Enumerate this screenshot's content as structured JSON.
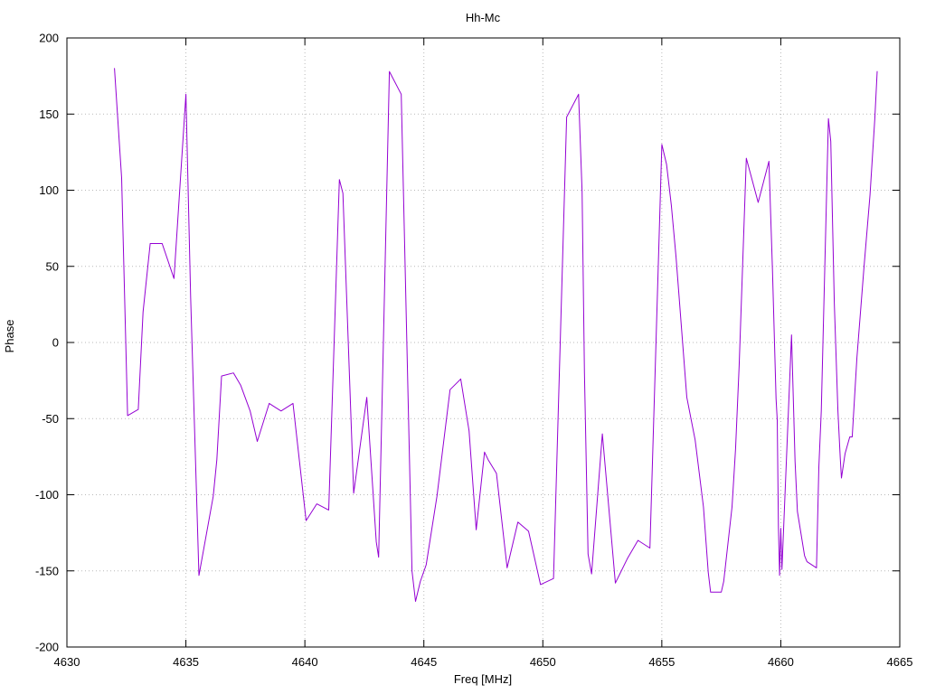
{
  "chart_data": {
    "type": "line",
    "title": "Hh-Mc",
    "xlabel": "Freq [MHz]",
    "ylabel": "Phase",
    "xlim": [
      4630,
      4665
    ],
    "ylim": [
      -200,
      200
    ],
    "xticks": [
      4630,
      4635,
      4640,
      4645,
      4650,
      4655,
      4660,
      4665
    ],
    "yticks": [
      -200,
      -150,
      -100,
      -50,
      0,
      50,
      100,
      150,
      200
    ],
    "grid": true,
    "legend_position": "none",
    "line_color": "#9400d3",
    "grid_color": "#b9b9b9",
    "border_color": "#000000",
    "background_color": "#ffffff",
    "series": [
      {
        "name": "Hh-Mc",
        "color": "#9400d3",
        "points": [
          [
            4632.0,
            180
          ],
          [
            4632.3,
            108
          ],
          [
            4632.55,
            -48
          ],
          [
            4633.0,
            -44
          ],
          [
            4633.2,
            20
          ],
          [
            4633.5,
            65
          ],
          [
            4634.0,
            65
          ],
          [
            4634.5,
            42
          ],
          [
            4635.0,
            163
          ],
          [
            4635.2,
            30
          ],
          [
            4635.55,
            -153
          ],
          [
            4636.15,
            -101
          ],
          [
            4636.3,
            -77
          ],
          [
            4636.5,
            -22
          ],
          [
            4637.0,
            -20
          ],
          [
            4637.3,
            -28
          ],
          [
            4637.7,
            -45
          ],
          [
            4638.0,
            -65
          ],
          [
            4638.5,
            -40
          ],
          [
            4638.7,
            -42
          ],
          [
            4639.0,
            -45
          ],
          [
            4639.5,
            -40
          ],
          [
            4640.05,
            -117
          ],
          [
            4640.5,
            -106
          ],
          [
            4641.0,
            -110
          ],
          [
            4641.45,
            107
          ],
          [
            4641.6,
            98
          ],
          [
            4642.05,
            -99
          ],
          [
            4642.6,
            -36
          ],
          [
            4643.0,
            -131
          ],
          [
            4643.1,
            -141
          ],
          [
            4643.55,
            178
          ],
          [
            4644.05,
            163
          ],
          [
            4644.5,
            -150
          ],
          [
            4644.65,
            -170
          ],
          [
            4644.85,
            -157
          ],
          [
            4645.1,
            -146
          ],
          [
            4645.55,
            -101
          ],
          [
            4646.1,
            -31
          ],
          [
            4646.55,
            -24
          ],
          [
            4646.9,
            -58
          ],
          [
            4647.2,
            -123
          ],
          [
            4647.55,
            -72
          ],
          [
            4647.7,
            -77
          ],
          [
            4648.05,
            -86
          ],
          [
            4648.5,
            -148
          ],
          [
            4648.95,
            -118
          ],
          [
            4649.4,
            -124
          ],
          [
            4649.9,
            -159
          ],
          [
            4650.45,
            -155
          ],
          [
            4651.0,
            148
          ],
          [
            4651.5,
            163
          ],
          [
            4651.65,
            99
          ],
          [
            4651.75,
            -20
          ],
          [
            4651.9,
            -139
          ],
          [
            4652.05,
            -152
          ],
          [
            4652.5,
            -60
          ],
          [
            4653.05,
            -158
          ],
          [
            4653.55,
            -142
          ],
          [
            4654.0,
            -130
          ],
          [
            4654.5,
            -135
          ],
          [
            4655.0,
            130
          ],
          [
            4655.2,
            117
          ],
          [
            4655.4,
            90
          ],
          [
            4655.6,
            56
          ],
          [
            4656.05,
            -36
          ],
          [
            4656.4,
            -64
          ],
          [
            4656.75,
            -108
          ],
          [
            4656.95,
            -151
          ],
          [
            4657.05,
            -164
          ],
          [
            4657.5,
            -164
          ],
          [
            4657.6,
            -157
          ],
          [
            4657.95,
            -108
          ],
          [
            4658.1,
            -70
          ],
          [
            4658.25,
            -15
          ],
          [
            4658.55,
            121
          ],
          [
            4659.05,
            92
          ],
          [
            4659.5,
            119
          ],
          [
            4659.65,
            48
          ],
          [
            4659.8,
            -37
          ],
          [
            4659.85,
            -51
          ],
          [
            4659.9,
            -121
          ],
          [
            4659.95,
            -153
          ],
          [
            4660.0,
            -122
          ],
          [
            4660.05,
            -149
          ],
          [
            4660.45,
            5
          ],
          [
            4660.6,
            -78
          ],
          [
            4660.7,
            -111
          ],
          [
            4661.0,
            -140
          ],
          [
            4661.1,
            -144
          ],
          [
            4661.5,
            -148
          ],
          [
            4661.6,
            -82
          ],
          [
            4661.7,
            -45
          ],
          [
            4662.0,
            147
          ],
          [
            4662.1,
            132
          ],
          [
            4662.25,
            26
          ],
          [
            4662.4,
            -45
          ],
          [
            4662.5,
            -76
          ],
          [
            4662.55,
            -89
          ],
          [
            4662.7,
            -73
          ],
          [
            4662.9,
            -62
          ],
          [
            4663.0,
            -62
          ],
          [
            4663.1,
            -36
          ],
          [
            4663.2,
            -10
          ],
          [
            4663.5,
            50
          ],
          [
            4663.75,
            97
          ],
          [
            4663.95,
            147
          ],
          [
            4664.05,
            178
          ]
        ]
      }
    ]
  }
}
